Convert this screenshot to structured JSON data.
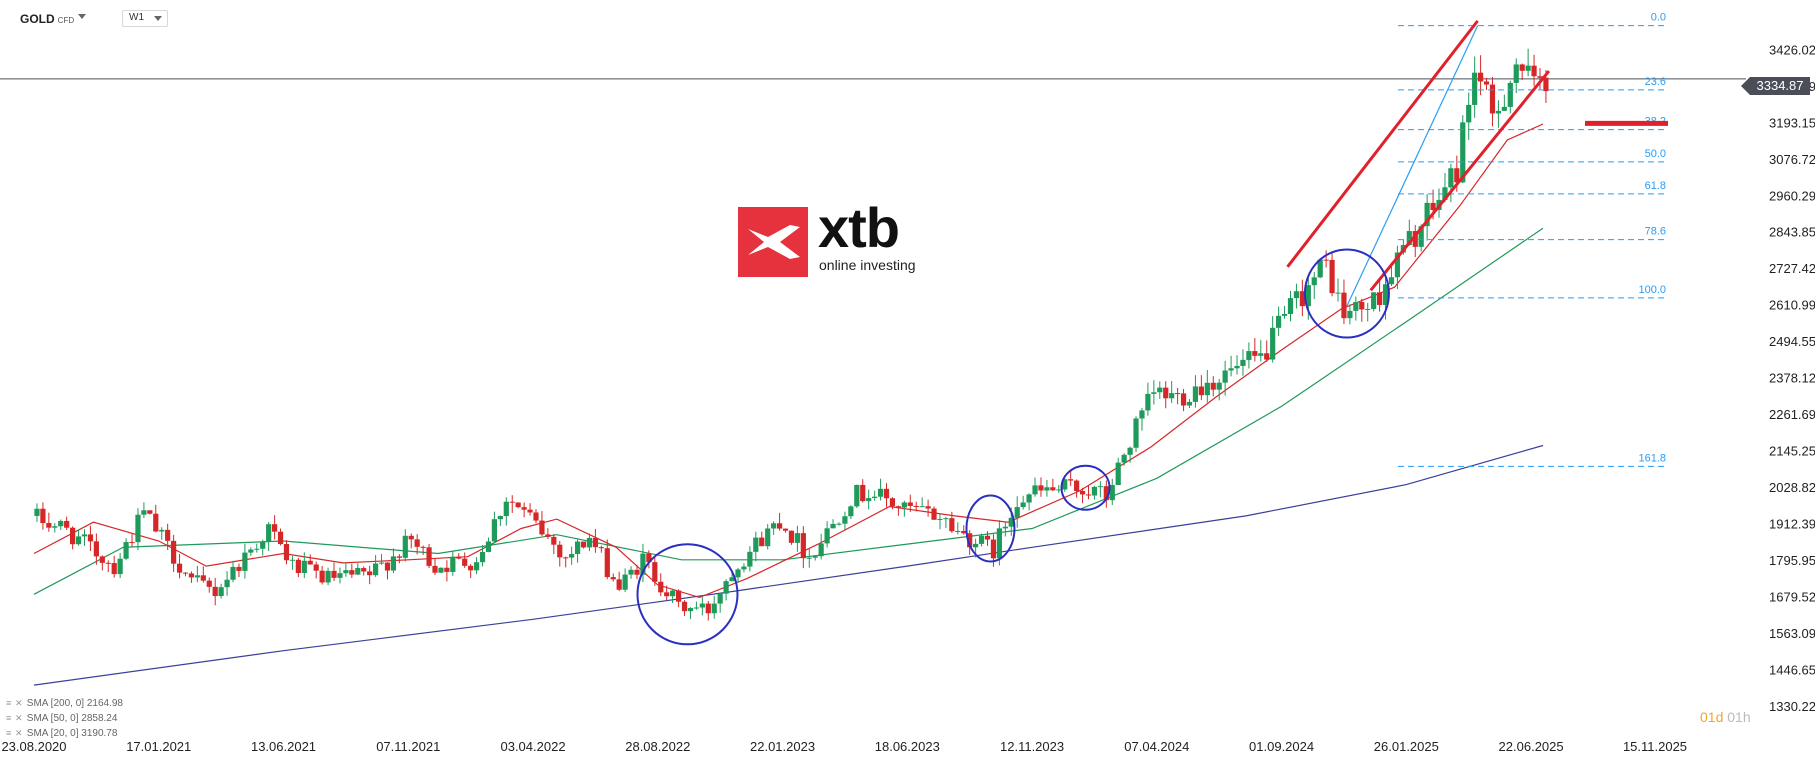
{
  "toolbar": {
    "symbol": "GOLD",
    "symbol_suffix": "CFD",
    "timeframe": "W1"
  },
  "logo": {
    "word": "xtb",
    "tagline": "online investing"
  },
  "current_price": "3334.87",
  "countdown": {
    "days": "01d",
    "hours": "01h"
  },
  "indicators": [
    {
      "label": "SMA [200, 0] 2164.98",
      "color": "#3b3f9a"
    },
    {
      "label": "SMA [50, 0] 2858.24",
      "color": "#1e9a5a"
    },
    {
      "label": "SMA [20, 0] 3190.78",
      "color": "#d62728"
    }
  ],
  "colors": {
    "up": "#1e9a5a",
    "down": "#d62728",
    "fib": "#2a9df4",
    "channel": "#e0202a",
    "circle": "#2b2fc0"
  },
  "chart_data": {
    "type": "candlestick",
    "timeframe": "W1",
    "ylim": [
      1330.22,
      3542.0
    ],
    "y_ticks": [
      "3426.02",
      "3309.59",
      "3193.15",
      "3076.72",
      "2960.29",
      "2843.85",
      "2727.42",
      "2610.99",
      "2494.55",
      "2378.12",
      "2261.69",
      "2145.25",
      "2028.82",
      "1912.39",
      "1795.95",
      "1679.52",
      "1563.09",
      "1446.65",
      "1330.22"
    ],
    "x_ticks": [
      "23.08.2020",
      "17.01.2021",
      "13.06.2021",
      "07.11.2021",
      "03.04.2022",
      "28.08.2022",
      "22.01.2023",
      "18.06.2023",
      "12.11.2023",
      "07.04.2024",
      "01.09.2024",
      "26.01.2025",
      "22.06.2025",
      "15.11.2025"
    ],
    "price_path": [
      [
        "2020-08-23",
        1940
      ],
      [
        "2020-10-01",
        1900
      ],
      [
        "2020-11-29",
        1780
      ],
      [
        "2021-01-03",
        1950
      ],
      [
        "2021-02-28",
        1730
      ],
      [
        "2021-03-28",
        1700
      ],
      [
        "2021-05-30",
        1900
      ],
      [
        "2021-06-27",
        1780
      ],
      [
        "2021-08-08",
        1740
      ],
      [
        "2021-09-26",
        1750
      ],
      [
        "2021-11-14",
        1860
      ],
      [
        "2021-12-12",
        1780
      ],
      [
        "2022-01-30",
        1800
      ],
      [
        "2022-03-06",
        2000
      ],
      [
        "2022-04-03",
        1930
      ],
      [
        "2022-05-15",
        1810
      ],
      [
        "2022-06-12",
        1870
      ],
      [
        "2022-07-17",
        1710
      ],
      [
        "2022-08-14",
        1800
      ],
      [
        "2022-09-25",
        1650
      ],
      [
        "2022-10-30",
        1640
      ],
      [
        "2022-11-27",
        1770
      ],
      [
        "2023-01-22",
        1930
      ],
      [
        "2023-02-26",
        1810
      ],
      [
        "2023-04-16",
        2000
      ],
      [
        "2023-05-07",
        2020
      ],
      [
        "2023-06-18",
        1960
      ],
      [
        "2023-07-30",
        1940
      ],
      [
        "2023-08-20",
        1890
      ],
      [
        "2023-10-01",
        1830
      ],
      [
        "2023-10-29",
        2000
      ],
      [
        "2023-12-03",
        2020
      ],
      [
        "2024-01-14",
        2030
      ],
      [
        "2024-02-11",
        2000
      ],
      [
        "2024-03-10",
        2180
      ],
      [
        "2024-04-07",
        2330
      ],
      [
        "2024-05-05",
        2320
      ],
      [
        "2024-05-26",
        2350
      ],
      [
        "2024-07-07",
        2400
      ],
      [
        "2024-08-11",
        2440
      ],
      [
        "2024-09-22",
        2630
      ],
      [
        "2024-10-27",
        2740
      ],
      [
        "2024-11-17",
        2580
      ],
      [
        "2024-12-22",
        2620
      ],
      [
        "2025-01-26",
        2790
      ],
      [
        "2025-02-23",
        2890
      ],
      [
        "2025-03-30",
        3050
      ],
      [
        "2025-04-20",
        3380
      ],
      [
        "2025-05-11",
        3200
      ],
      [
        "2025-06-08",
        3390
      ],
      [
        "2025-06-29",
        3300
      ],
      [
        "2025-07-06",
        3334.87
      ]
    ],
    "sma20_path": [
      [
        "2020-08-23",
        1820
      ],
      [
        "2020-11-01",
        1920
      ],
      [
        "2021-01-17",
        1860
      ],
      [
        "2021-03-14",
        1780
      ],
      [
        "2021-06-13",
        1820
      ],
      [
        "2021-08-22",
        1790
      ],
      [
        "2021-11-07",
        1800
      ],
      [
        "2022-01-16",
        1810
      ],
      [
        "2022-03-20",
        1900
      ],
      [
        "2022-05-01",
        1930
      ],
      [
        "2022-07-10",
        1840
      ],
      [
        "2022-08-28",
        1720
      ],
      [
        "2022-10-16",
        1680
      ],
      [
        "2022-12-11",
        1740
      ],
      [
        "2023-03-05",
        1850
      ],
      [
        "2023-05-28",
        1970
      ],
      [
        "2023-08-13",
        1940
      ],
      [
        "2023-10-15",
        1920
      ],
      [
        "2024-01-07",
        2020
      ],
      [
        "2024-03-31",
        2160
      ],
      [
        "2024-06-16",
        2320
      ],
      [
        "2024-09-01",
        2470
      ],
      [
        "2024-11-10",
        2600
      ],
      [
        "2025-01-12",
        2670
      ],
      [
        "2025-03-30",
        2930
      ],
      [
        "2025-05-25",
        3140
      ],
      [
        "2025-07-06",
        3190.78
      ]
    ],
    "sma50_path": [
      [
        "2020-08-23",
        1690
      ],
      [
        "2020-12-06",
        1840
      ],
      [
        "2021-06-13",
        1860
      ],
      [
        "2021-12-12",
        1820
      ],
      [
        "2022-05-01",
        1880
      ],
      [
        "2022-09-25",
        1800
      ],
      [
        "2023-01-22",
        1800
      ],
      [
        "2023-06-18",
        1850
      ],
      [
        "2023-11-12",
        1900
      ],
      [
        "2024-04-07",
        2060
      ],
      [
        "2024-09-01",
        2290
      ],
      [
        "2025-01-26",
        2560
      ],
      [
        "2025-07-06",
        2858.24
      ]
    ],
    "sma200_path": [
      [
        "2020-08-23",
        1400
      ],
      [
        "2021-06-13",
        1510
      ],
      [
        "2022-04-03",
        1610
      ],
      [
        "2022-11-27",
        1700
      ],
      [
        "2023-06-18",
        1780
      ],
      [
        "2023-11-12",
        1840
      ],
      [
        "2024-07-21",
        1940
      ],
      [
        "2025-01-26",
        2040
      ],
      [
        "2025-07-06",
        2164.98
      ]
    ],
    "fibonacci": {
      "levels": [
        {
          "label": "0.0",
          "price": 3505
        },
        {
          "label": "23.6",
          "price": 3300
        },
        {
          "label": "38.2",
          "price": 3173
        },
        {
          "label": "50.0",
          "price": 3070
        },
        {
          "label": "61.8",
          "price": 2968
        },
        {
          "label": "78.6",
          "price": 2822
        },
        {
          "label": "100.0",
          "price": 2636
        },
        {
          "label": "161.8",
          "price": 2098
        }
      ]
    },
    "resistance_level": 3193,
    "channel": [
      {
        "x1": "2024-09-08",
        "y1": 2735,
        "x2": "2025-04-20",
        "y2": 3520
      },
      {
        "x1": "2024-12-15",
        "y1": 2660,
        "x2": "2025-07-13",
        "y2": 3360
      }
    ],
    "trend_line": {
      "x1": "2024-11-17",
      "y1": 2610,
      "x2": "2025-04-20",
      "y2": 3505
    },
    "highlight_circles": [
      {
        "date": "2022-10-02",
        "price": 1690
      },
      {
        "date": "2023-09-24",
        "price": 1900
      },
      {
        "date": "2024-01-14",
        "price": 2030
      },
      {
        "date": "2024-11-17",
        "price": 2650
      }
    ]
  }
}
